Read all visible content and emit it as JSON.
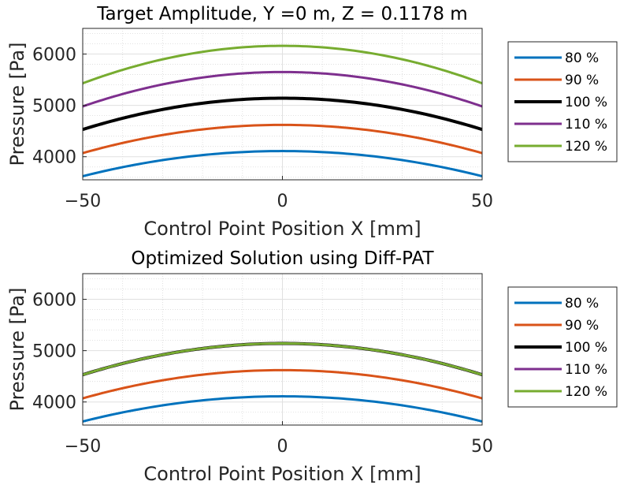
{
  "chart_data": [
    {
      "type": "line",
      "title": "Target Amplitude, Y =0 m, Z = 0.1178 m",
      "xlabel": "Control Point Position X [mm]",
      "ylabel": "Pressure [Pa]",
      "xlim": [
        -50,
        50
      ],
      "ylim": [
        3550,
        6500
      ],
      "xticks": [
        -50,
        0,
        50
      ],
      "xtick_labels": [
        "−50",
        "0",
        "50"
      ],
      "yticks": [
        4000,
        5000,
        6000
      ],
      "ytick_labels": [
        "4000",
        "5000",
        "6000"
      ],
      "grid": true,
      "minor_grid": true,
      "legend_position": "outside-right",
      "series": [
        {
          "name": "80 %",
          "color": "#0072BD",
          "width": 3,
          "center": 4110,
          "edge": 3620
        },
        {
          "name": "90 %",
          "color": "#D95319",
          "width": 3,
          "center": 4620,
          "edge": 4070
        },
        {
          "name": "100 %",
          "color": "#000000",
          "width": 4,
          "center": 5140,
          "edge": 4530
        },
        {
          "name": "110 %",
          "color": "#7E2F8E",
          "width": 3,
          "center": 5650,
          "edge": 4980
        },
        {
          "name": "120 %",
          "color": "#77AC30",
          "width": 3,
          "center": 6160,
          "edge": 5430
        }
      ]
    },
    {
      "type": "line",
      "title": "Optimized Solution using Diff-PAT",
      "xlabel": "Control Point Position X [mm]",
      "ylabel": "Pressure [Pa]",
      "xlim": [
        -50,
        50
      ],
      "ylim": [
        3550,
        6500
      ],
      "xticks": [
        -50,
        0,
        50
      ],
      "xtick_labels": [
        "−50",
        "0",
        "50"
      ],
      "yticks": [
        4000,
        5000,
        6000
      ],
      "ytick_labels": [
        "4000",
        "5000",
        "6000"
      ],
      "grid": true,
      "minor_grid": true,
      "legend_position": "outside-right",
      "series": [
        {
          "name": "80 %",
          "color": "#0072BD",
          "width": 3,
          "center": 4110,
          "edge": 3620
        },
        {
          "name": "90 %",
          "color": "#D95319",
          "width": 3,
          "center": 4620,
          "edge": 4070
        },
        {
          "name": "100 %",
          "color": "#000000",
          "width": 4,
          "center": 5140,
          "edge": 4530
        },
        {
          "name": "110 %",
          "color": "#7E2F8E",
          "width": 3,
          "center": 5140,
          "edge": 4530
        },
        {
          "name": "120 %",
          "color": "#77AC30",
          "width": 3,
          "center": 5140,
          "edge": 4530
        }
      ]
    }
  ]
}
